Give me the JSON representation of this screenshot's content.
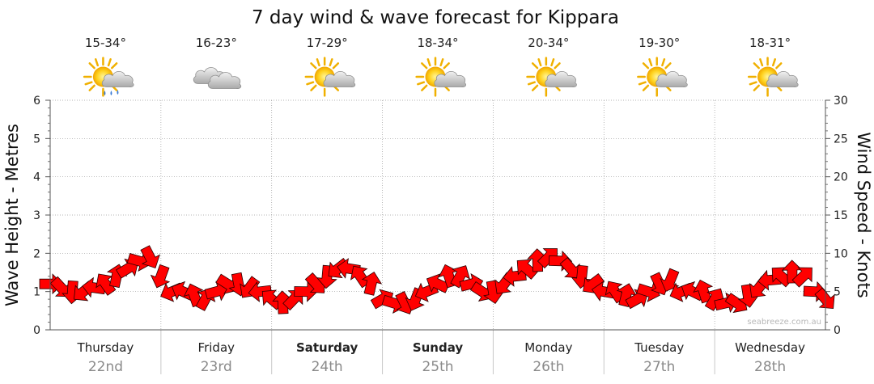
{
  "chart_data": {
    "type": "line",
    "title": "7 day wind & wave forecast for Kippara",
    "ylabel_left": "Wave Height - Metres",
    "ylabel_right": "Wind Speed - Knots",
    "ylim_left": [
      0,
      6
    ],
    "ylim_right": [
      0,
      30
    ],
    "yticks_left": [
      "0",
      "1",
      "2",
      "3",
      "4",
      "5",
      "6"
    ],
    "yticks_right": [
      "0",
      "5",
      "10",
      "15",
      "20",
      "25",
      "30"
    ],
    "grid": true,
    "days": [
      {
        "name": "Thursday",
        "date": "22nd",
        "temp": "15-34°",
        "icon": "sun-cloud-rain-icon",
        "bold": false
      },
      {
        "name": "Friday",
        "date": "23rd",
        "temp": "16-23°",
        "icon": "cloud-icon",
        "bold": false
      },
      {
        "name": "Saturday",
        "date": "24th",
        "temp": "17-29°",
        "icon": "sun-cloud-icon",
        "bold": true
      },
      {
        "name": "Sunday",
        "date": "25th",
        "temp": "18-34°",
        "icon": "sun-cloud-icon",
        "bold": true
      },
      {
        "name": "Monday",
        "date": "26th",
        "temp": "20-34°",
        "icon": "sun-cloud-icon",
        "bold": false
      },
      {
        "name": "Tuesday",
        "date": "27th",
        "temp": "19-30°",
        "icon": "sun-cloud-icon",
        "bold": false
      },
      {
        "name": "Wednesday",
        "date": "28th",
        "temp": "18-31°",
        "icon": "sun-cloud-icon",
        "bold": false
      }
    ],
    "series": [
      {
        "name": "Wind Speed - Knots",
        "color": "#ff0000",
        "marker": "wind-direction-arrow",
        "t": [
          0,
          0.1,
          0.2,
          0.3,
          0.4,
          0.5,
          0.6,
          0.7,
          0.8,
          0.9,
          1,
          1.1,
          1.2,
          1.3,
          1.4,
          1.5,
          1.6,
          1.7,
          1.8,
          1.9,
          2,
          2.1,
          2.2,
          2.3,
          2.4,
          2.5,
          2.6,
          2.7,
          2.8,
          2.9,
          3,
          3.1,
          3.2,
          3.3,
          3.4,
          3.5,
          3.6,
          3.7,
          3.8,
          3.9,
          4,
          4.1,
          4.2,
          4.3,
          4.4,
          4.5,
          4.6,
          4.7,
          4.8,
          4.9,
          5,
          5.1,
          5.2,
          5.3,
          5.4,
          5.5,
          5.6,
          5.7,
          5.8,
          5.9,
          6,
          6.1,
          6.2,
          6.3,
          6.4,
          6.5,
          6.6,
          6.7,
          6.8,
          6.9,
          7
        ],
        "speed": [
          6,
          5.5,
          5,
          5,
          5.5,
          6,
          7,
          8,
          9,
          9.5,
          7,
          5,
          5,
          4.5,
          4,
          5,
          6,
          6,
          5.5,
          5,
          4,
          3.5,
          4,
          5,
          6,
          7,
          8,
          8,
          7,
          6,
          4,
          3.5,
          3.5,
          4,
          5,
          6,
          7,
          7,
          6,
          5,
          5,
          6,
          7,
          8,
          9,
          9.5,
          9,
          8,
          7,
          6,
          5,
          5,
          4.5,
          4,
          5,
          6,
          6.5,
          5,
          5,
          5,
          4,
          3.5,
          3.5,
          4.5,
          5.5,
          6.5,
          7,
          7.5,
          7,
          5,
          4
        ]
      }
    ],
    "watermark": "seabreeze.com.au"
  }
}
